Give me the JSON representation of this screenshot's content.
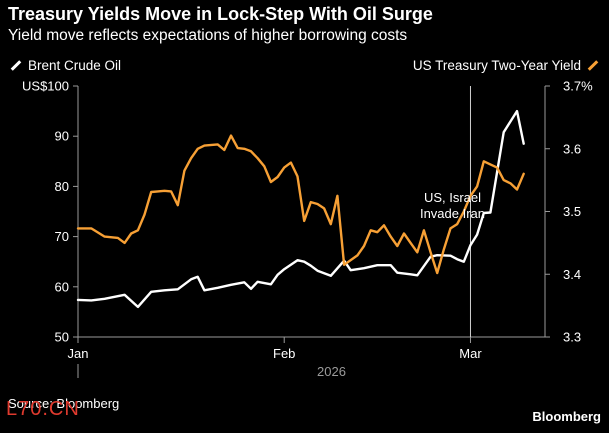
{
  "header": {
    "title": "Treasury Yields Move in Lock-Step With Oil Surge",
    "subtitle": "Yield move reflects expectations of higher borrowing costs"
  },
  "footer": {
    "source": "Source: Bloomberg",
    "brand": "Bloomberg",
    "watermark": "L70.CN"
  },
  "colors": {
    "background": "#000000",
    "oil": "#ffffff",
    "yield": "#f7a035",
    "axis": "#9a9a9a"
  },
  "chart_data": {
    "type": "line",
    "xaxis": {
      "ticks": [
        "Jan",
        "Feb",
        "Mar"
      ],
      "tick_days": [
        1,
        32,
        60
      ],
      "year_label": "2026",
      "range_days": [
        1,
        70
      ]
    },
    "left_axis": {
      "label": "US$100",
      "ticks": [
        50,
        60,
        70,
        80,
        90
      ],
      "ylim": [
        50,
        100
      ]
    },
    "right_axis": {
      "label": "3.7%",
      "ticks": [
        3.3,
        3.4,
        3.5,
        3.6
      ],
      "ylim": [
        3.3,
        3.7
      ]
    },
    "annotation": {
      "lines": [
        "US, Israel",
        "Invade Iran"
      ],
      "day": 60
    },
    "series": [
      {
        "name": "Brent Crude Oil",
        "axis": "left",
        "x": [
          1,
          3,
          5,
          8,
          10,
          12,
          14,
          16,
          18,
          19,
          20,
          22,
          24,
          26,
          27,
          28,
          30,
          31,
          32,
          34,
          35,
          36,
          37,
          39,
          41,
          42,
          43,
          44,
          46,
          48,
          49,
          51,
          52,
          54,
          55,
          57,
          58,
          59,
          60,
          61,
          62,
          63,
          65,
          67,
          68
        ],
        "values": [
          57.4,
          57.3,
          57.6,
          58.4,
          56.0,
          59.0,
          59.3,
          59.5,
          61.5,
          62.0,
          59.3,
          59.8,
          60.4,
          60.9,
          59.6,
          61.0,
          60.5,
          62.4,
          63.5,
          65.3,
          65.0,
          64.2,
          63.2,
          62.2,
          65.2,
          63.3,
          63.5,
          63.7,
          64.3,
          64.3,
          62.8,
          62.5,
          62.3,
          66.0,
          66.3,
          66.2,
          65.5,
          65.0,
          68.3,
          70.4,
          74.7,
          74.8,
          90.8,
          95.0,
          88.5
        ]
      },
      {
        "name": "US Treasury Two-Year Yield",
        "axis": "right",
        "x": [
          1,
          3,
          5,
          7,
          8,
          9,
          10,
          11,
          12,
          13,
          14,
          15,
          16,
          17,
          18,
          19,
          20,
          22,
          23,
          24,
          25,
          26,
          27,
          28,
          29,
          30,
          31,
          32,
          33,
          34,
          35,
          36,
          37,
          38,
          39,
          40,
          41,
          43,
          44,
          45,
          46,
          47,
          48,
          49,
          50,
          51,
          52,
          53,
          54,
          55,
          56,
          57,
          58,
          59,
          60,
          61,
          62,
          63,
          64,
          65,
          66,
          67,
          68
        ],
        "values": [
          3.473,
          3.473,
          3.46,
          3.458,
          3.45,
          3.465,
          3.47,
          3.495,
          3.531,
          3.532,
          3.533,
          3.532,
          3.51,
          3.565,
          3.585,
          3.6,
          3.605,
          3.607,
          3.598,
          3.621,
          3.601,
          3.6,
          3.596,
          3.585,
          3.572,
          3.547,
          3.555,
          3.57,
          3.578,
          3.556,
          3.485,
          3.515,
          3.512,
          3.505,
          3.48,
          3.525,
          3.415,
          3.43,
          3.445,
          3.47,
          3.467,
          3.478,
          3.46,
          3.445,
          3.465,
          3.45,
          3.435,
          3.47,
          3.435,
          3.402,
          3.44,
          3.473,
          3.48,
          3.5,
          3.525,
          3.54,
          3.58,
          3.575,
          3.57,
          3.55,
          3.545,
          3.535,
          3.56
        ]
      }
    ]
  }
}
